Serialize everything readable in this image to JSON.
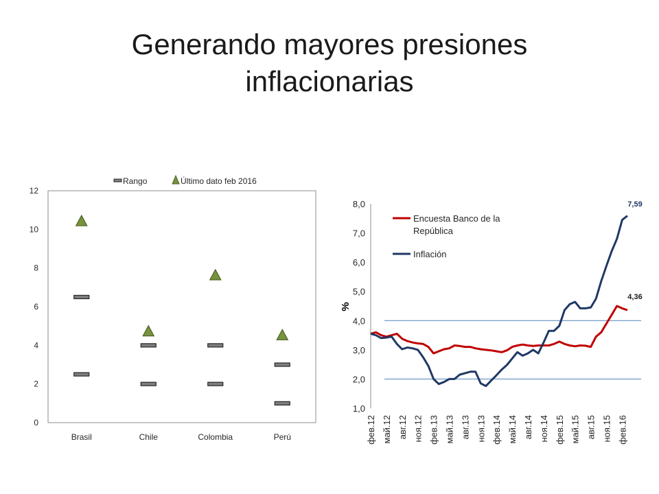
{
  "slide": {
    "title_line1": "Generando mayores presiones",
    "title_line2": "inflacionarias"
  },
  "chart_data": [
    {
      "type": "scatter",
      "categories": [
        "Brasil",
        "Chile",
        "Colombia",
        "Perú"
      ],
      "ylim": [
        0,
        12
      ],
      "yticks": [
        "0",
        "2",
        "4",
        "6",
        "8",
        "10",
        "12"
      ],
      "grid": false,
      "legend_position": "top",
      "series": [
        {
          "name": "Rango",
          "marker": "dash",
          "color": "#7f7f7f",
          "lower": [
            2.5,
            2,
            2,
            1
          ],
          "upper": [
            6.5,
            4,
            4,
            3
          ]
        },
        {
          "name": "Último dato feb 2016",
          "marker": "triangle",
          "color": "#77933c",
          "values": [
            10.4,
            4.7,
            7.6,
            4.5
          ]
        }
      ]
    },
    {
      "type": "line",
      "ylabel": "%",
      "ylim": [
        1.0,
        8.0
      ],
      "yticks": [
        "1,0",
        "2,0",
        "3,0",
        "4,0",
        "5,0",
        "6,0",
        "7,0",
        "8,0"
      ],
      "xticks": [
        "фев.12",
        "май.12",
        "авг.12",
        "ноя.12",
        "фев.13",
        "май.13",
        "авг.13",
        "ноя.13",
        "фев.14",
        "май.14",
        "авг.14",
        "ноя.14",
        "фев.15",
        "май.15",
        "авг.15",
        "ноя.15",
        "фев.16"
      ],
      "reference_lines": [
        2.0,
        4.0
      ],
      "legend_position": "top-left",
      "annotations": [
        {
          "text": "7,59",
          "series": "Inflación"
        },
        {
          "text": "4,36",
          "series": "Encuesta Banco de la República"
        }
      ],
      "series": [
        {
          "name": "Encuesta Banco de la República",
          "color": "#c00000",
          "values": [
            3.55,
            3.6,
            3.5,
            3.45,
            3.5,
            3.55,
            3.38,
            3.3,
            3.25,
            3.22,
            3.2,
            3.1,
            2.88,
            2.95,
            3.02,
            3.05,
            3.15,
            3.13,
            3.1,
            3.1,
            3.05,
            3.02,
            3.0,
            2.98,
            2.95,
            2.92,
            2.98,
            3.1,
            3.15,
            3.18,
            3.15,
            3.13,
            3.15,
            3.15,
            3.15,
            3.2,
            3.28,
            3.2,
            3.15,
            3.12,
            3.15,
            3.14,
            3.1,
            3.45,
            3.6,
            3.9,
            4.2,
            4.5,
            4.42,
            4.36
          ]
        },
        {
          "name": "Inflación",
          "color": "#1f3864",
          "values": [
            3.55,
            3.5,
            3.4,
            3.42,
            3.45,
            3.2,
            3.02,
            3.08,
            3.05,
            3.0,
            2.75,
            2.45,
            2.0,
            1.83,
            1.9,
            2.0,
            2.0,
            2.15,
            2.2,
            2.25,
            2.25,
            1.85,
            1.76,
            1.95,
            2.13,
            2.32,
            2.48,
            2.7,
            2.92,
            2.8,
            2.88,
            3.0,
            2.88,
            3.25,
            3.65,
            3.65,
            3.82,
            4.36,
            4.56,
            4.64,
            4.42,
            4.42,
            4.45,
            4.75,
            5.35,
            5.88,
            6.38,
            6.8,
            7.45,
            7.59
          ]
        }
      ]
    }
  ]
}
